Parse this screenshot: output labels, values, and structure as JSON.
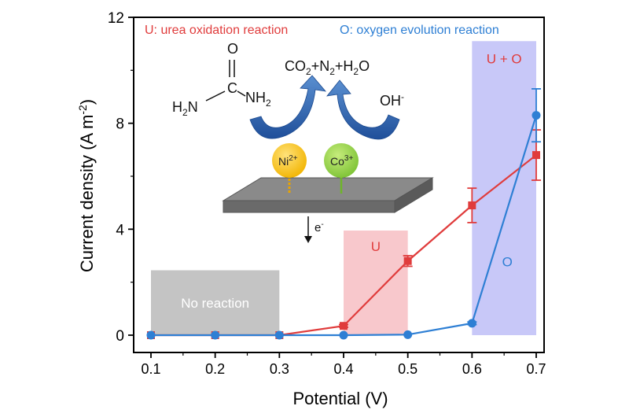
{
  "chart_data": {
    "type": "line",
    "xlabel": "Potential (V)",
    "ylabel": "Current density (A m",
    "ylabel_sup": "-2",
    "ylabel_end": ")",
    "x_ticks": [
      "0.1",
      "0.2",
      "0.3",
      "0.4",
      "0.5",
      "0.6",
      "0.7"
    ],
    "y_ticks": [
      "0",
      "4",
      "8",
      "12"
    ],
    "xlim": [
      0.07,
      0.72
    ],
    "ylim": [
      0,
      12
    ],
    "legend": {
      "urea": "U: urea oxidation reaction",
      "oxygen": "O: oxygen evolution reaction"
    },
    "series": [
      {
        "name": "U: urea oxidation reaction",
        "color": "#e03c3c",
        "x": [
          0.1,
          0.2,
          0.3,
          0.4,
          0.5,
          0.6,
          0.7
        ],
        "y": [
          0.0,
          0.0,
          0.0,
          0.35,
          2.8,
          4.9,
          6.8
        ],
        "err": [
          0.0,
          0.0,
          0.0,
          0.05,
          0.2,
          0.65,
          0.95
        ]
      },
      {
        "name": "O: oxygen evolution reaction",
        "color": "#2e7fd4",
        "x": [
          0.1,
          0.2,
          0.3,
          0.4,
          0.5,
          0.6,
          0.7
        ],
        "y": [
          0.0,
          0.0,
          0.0,
          0.0,
          0.02,
          0.45,
          8.3
        ],
        "err": [
          0.0,
          0.0,
          0.0,
          0.0,
          0.0,
          0.05,
          1.0
        ]
      }
    ],
    "regions": [
      {
        "label": "No reaction",
        "x0": 0.1,
        "x1": 0.3,
        "y0": 0.0,
        "y1": 2.45,
        "fill": "#c4c4c4",
        "text_color": "#ffffff"
      },
      {
        "label": "U",
        "x0": 0.4,
        "x1": 0.5,
        "y0": 0.0,
        "y1": 3.95,
        "fill": "#f8c8cc",
        "text_color": "#e03c3c"
      },
      {
        "label": "U + O",
        "x0": 0.6,
        "x1": 0.7,
        "y0": 0.0,
        "y1": 11.1,
        "fill": "#c8c8f8",
        "text_color": "#e03c3c"
      }
    ],
    "region_o_label": "O",
    "region_o_color": "#2e7fd4"
  },
  "schematic": {
    "urea_o": "O",
    "urea_c": "C",
    "urea_left_h": "H",
    "urea_left_sub": "2",
    "urea_left_n": "N",
    "urea_right_nh": "NH",
    "urea_right_sub": "2",
    "products": [
      {
        "t": "CO",
        "s": ""
      },
      {
        "t": "",
        "s": "2"
      },
      {
        "t": "+N",
        "s": ""
      },
      {
        "t": "",
        "s": "2"
      },
      {
        "t": "+H",
        "s": ""
      },
      {
        "t": "",
        "s": "2"
      },
      {
        "t": "O",
        "s": ""
      }
    ],
    "hydroxide": "OH",
    "hydroxide_sup": "-",
    "ni_label": "Ni",
    "ni_sup": "2+",
    "co_label": "Co",
    "co_sup": "3+",
    "electron": "e",
    "electron_sup": "-"
  }
}
